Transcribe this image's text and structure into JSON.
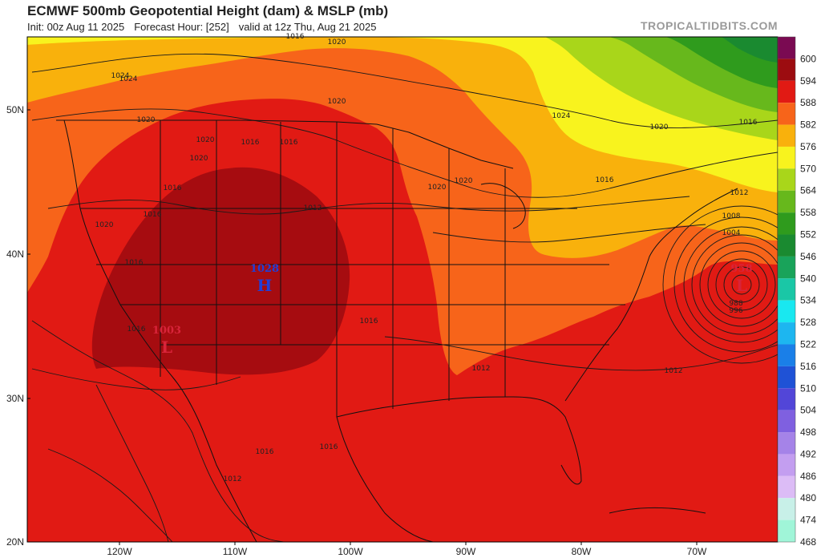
{
  "header": {
    "title": "ECMWF 500mb Geopotential Height (dam) & MSLP (mb)",
    "init": "Init: 00z Aug 11 2025",
    "forecast_hour": "Forecast Hour: [252]",
    "valid": "valid at 12z Thu, Aug 21 2025",
    "credit": "TROPICALTIDBITS.COM"
  },
  "map": {
    "lat_labels": [
      "50N",
      "40N",
      "30N",
      "20N"
    ],
    "lon_labels": [
      "120W",
      "110W",
      "100W",
      "90W",
      "80W",
      "70W"
    ]
  },
  "colorbar": {
    "levels": [
      "600",
      "594",
      "588",
      "582",
      "576",
      "570",
      "564",
      "558",
      "552",
      "546",
      "540",
      "534",
      "528",
      "522",
      "516",
      "510",
      "504",
      "498",
      "492",
      "486",
      "480",
      "474",
      "468"
    ],
    "colors": [
      "#7a0a52",
      "#9c0c10",
      "#e11a14",
      "#f7641a",
      "#f9b10c",
      "#f8f31e",
      "#a9d61a",
      "#67b81c",
      "#2f9b1d",
      "#1a8a30",
      "#19a35a",
      "#1ac7a6",
      "#19e8f0",
      "#1db6f0",
      "#1a7fe8",
      "#1f52d6",
      "#5246d8",
      "#7f60e0",
      "#a583e8",
      "#c39ef0",
      "#dcbcf6",
      "#c8f0e8",
      "#a0f5d8"
    ]
  },
  "pressure_centers": [
    {
      "type": "H",
      "value": "1028",
      "color": "#1f3fd9"
    },
    {
      "type": "L",
      "value": "958",
      "color": "#d8243a"
    },
    {
      "type": "L",
      "value": "1003",
      "color": "#d8243a"
    }
  ],
  "isobar_labels": [
    "1024",
    "1020",
    "1020",
    "1016",
    "1020",
    "1016",
    "1020",
    "1016",
    "1016",
    "1024",
    "1020",
    "1016",
    "1020",
    "1016",
    "1020",
    "1016",
    "1024",
    "1020",
    "1016",
    "1012",
    "1016",
    "1012",
    "1008",
    "1004",
    "1012",
    "1012",
    "1016",
    "1016",
    "1016",
    "1012",
    "1020",
    "988",
    "996"
  ]
}
